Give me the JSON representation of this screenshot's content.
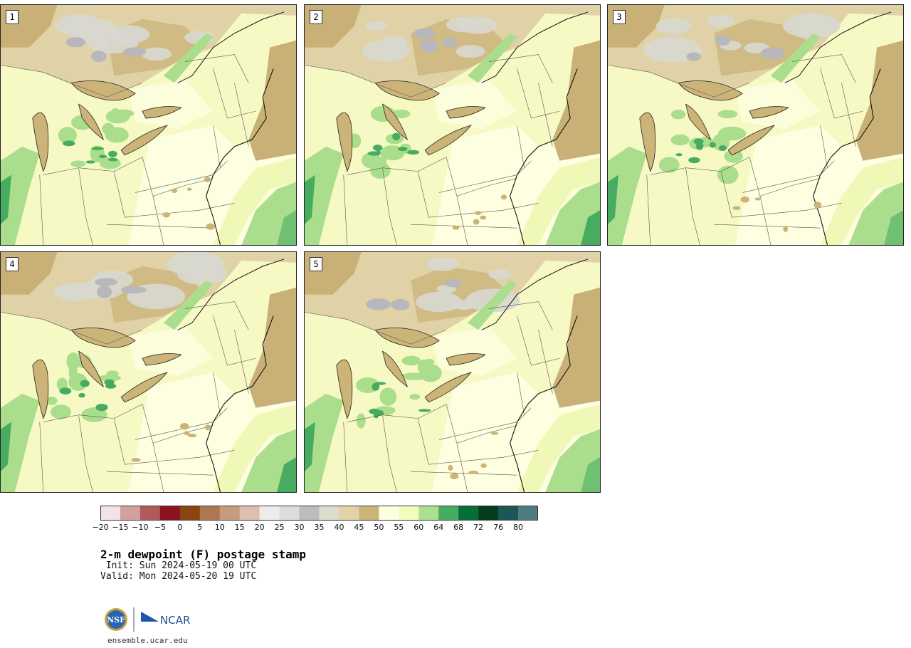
{
  "panels": [
    {
      "label": "1"
    },
    {
      "label": "2"
    },
    {
      "label": "3"
    },
    {
      "label": "4"
    },
    {
      "label": "5"
    }
  ],
  "colorbar": {
    "ticks": [
      "−20",
      "−15",
      "−10",
      "−5",
      "0",
      "5",
      "10",
      "15",
      "20",
      "25",
      "30",
      "35",
      "40",
      "45",
      "50",
      "55",
      "60",
      "64",
      "68",
      "72",
      "76",
      "80"
    ],
    "colors": [
      "#f2e4e4",
      "#d3a0a0",
      "#b05a5a",
      "#8a1420",
      "#8b4513",
      "#ae7950",
      "#c69c80",
      "#dcbfae",
      "#ececec",
      "#dcdcdc",
      "#bcbcbc",
      "#dcdccc",
      "#e2d3a7",
      "#ccb478",
      "#fefee2",
      "#f4fcbc",
      "#ace090",
      "#48ac60",
      "#047038",
      "#043c1c",
      "#1c5656",
      "#4e7c7c"
    ]
  },
  "title": "2-m dewpoint (F) postage stamp",
  "init": " Init: Sun 2024-05-19 00 UTC",
  "valid": "Valid: Mon 2024-05-20 19 UTC",
  "footer": {
    "logo1": "NSF",
    "logo2": "NCAR",
    "site": "ensemble.ucar.edu"
  }
}
